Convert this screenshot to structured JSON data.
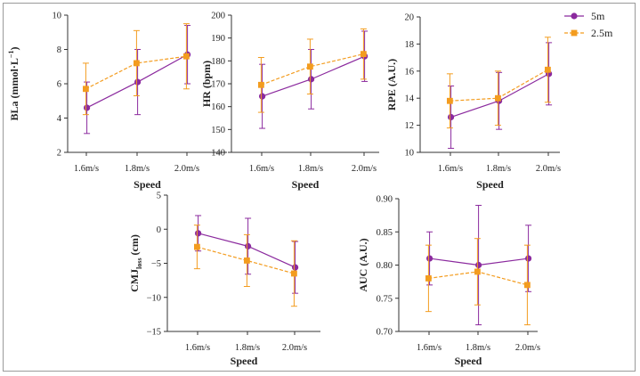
{
  "colors": {
    "5m": "#8b2a9e",
    "2.5m": "#f39c1f"
  },
  "legend": [
    {
      "label": "5m",
      "marker": "circle"
    },
    {
      "label": "2.5m",
      "marker": "square"
    }
  ],
  "chart_data": [
    {
      "type": "line",
      "ylabel_main": "BLa (mmol·L",
      "ylabel_sup": "−1",
      "ylabel_end": ")",
      "xlabel": "Speed",
      "categories": [
        "1.6m/s",
        "1.8m/s",
        "2.0m/s"
      ],
      "ylim": [
        2,
        10
      ],
      "yticks": [
        2,
        4,
        6,
        8,
        10
      ],
      "series": [
        {
          "name": "5m",
          "values": [
            4.6,
            6.1,
            7.7
          ],
          "errors": [
            1.5,
            1.9,
            1.7
          ]
        },
        {
          "name": "2.5m",
          "values": [
            5.7,
            7.2,
            7.6
          ],
          "errors": [
            1.5,
            1.9,
            1.9
          ]
        }
      ]
    },
    {
      "type": "line",
      "ylabel_main": "HR (bpm)",
      "ylabel_sup": "",
      "ylabel_end": "",
      "xlabel": "Speed",
      "categories": [
        "1.6m/s",
        "1.8m/s",
        "2.0m/s"
      ],
      "ylim": [
        140,
        200
      ],
      "yticks": [
        140,
        150,
        160,
        170,
        180,
        190,
        200
      ],
      "series": [
        {
          "name": "5m",
          "values": [
            164.5,
            172,
            182
          ],
          "errors": [
            14,
            13,
            11
          ]
        },
        {
          "name": "2.5m",
          "values": [
            169.5,
            177.5,
            183
          ],
          "errors": [
            12,
            12,
            11
          ]
        }
      ]
    },
    {
      "type": "line",
      "ylabel_main": "RPE (A.U.)",
      "ylabel_sup": "",
      "ylabel_end": "",
      "xlabel": "Speed",
      "categories": [
        "1.6m/s",
        "1.8m/s",
        "2.0m/s"
      ],
      "ylim": [
        10,
        20
      ],
      "yticks": [
        10,
        12,
        14,
        16,
        18,
        20
      ],
      "series": [
        {
          "name": "5m",
          "values": [
            12.6,
            13.8,
            15.8
          ],
          "errors": [
            2.3,
            2.1,
            2.3
          ]
        },
        {
          "name": "2.5m",
          "values": [
            13.8,
            14.0,
            16.1
          ],
          "errors": [
            2.0,
            2.0,
            2.4
          ]
        }
      ]
    },
    {
      "type": "line",
      "ylabel_main": "CMJ",
      "ylabel_sub": "loss",
      "ylabel_end": " (cm)",
      "xlabel": "Speed",
      "categories": [
        "1.6m/s",
        "1.8m/s",
        "2.0m/s"
      ],
      "ylim": [
        -15,
        5
      ],
      "yticks": [
        -15,
        -10,
        -5,
        0,
        5
      ],
      "series": [
        {
          "name": "5m",
          "values": [
            -0.6,
            -2.5,
            -5.6
          ],
          "errors": [
            2.6,
            4.1,
            3.8
          ]
        },
        {
          "name": "2.5m",
          "values": [
            -2.6,
            -4.6,
            -6.5
          ],
          "errors": [
            3.2,
            3.8,
            4.8
          ]
        }
      ]
    },
    {
      "type": "line",
      "ylabel_main": "AUC (A.U.)",
      "ylabel_sup": "",
      "ylabel_end": "",
      "xlabel": "Speed",
      "categories": [
        "1.6m/s",
        "1.8m/s",
        "2.0m/s"
      ],
      "ylim": [
        0.7,
        0.9
      ],
      "yticks": [
        0.7,
        0.75,
        0.8,
        0.85,
        0.9
      ],
      "series": [
        {
          "name": "5m",
          "values": [
            0.81,
            0.8,
            0.81
          ],
          "errors": [
            0.04,
            0.09,
            0.05
          ]
        },
        {
          "name": "2.5m",
          "values": [
            0.78,
            0.79,
            0.77
          ],
          "errors": [
            0.05,
            0.05,
            0.06
          ]
        }
      ]
    }
  ]
}
